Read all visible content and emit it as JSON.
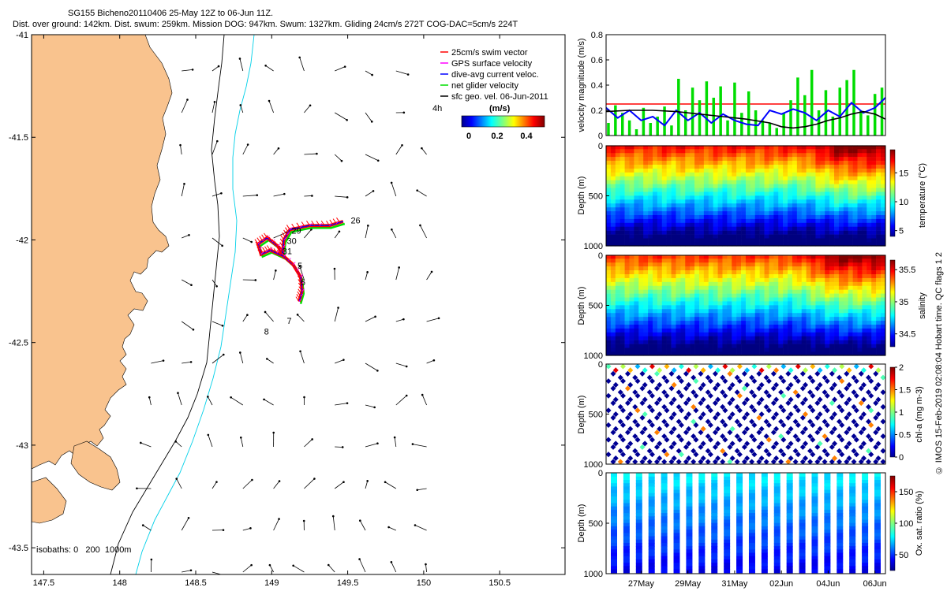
{
  "header": {
    "line1": "SG155 Bicheno20110406 25-May 12Z to 06-Jun 11Z.",
    "line2": "Dist. over ground: 142km. Dist. swum: 259km. Mission DOG: 947km. Swum: 1327km. Gliding 24cm/s 272T COG-DAC=5cm/s 224T"
  },
  "credit": "© IMOS 15-Feb-2019 02:08:04 Hobart time. QC flags 1 2",
  "colors": {
    "land": "#f9c38e",
    "isobath_200": "#000000",
    "isobath_1000": "#00d0e8",
    "swim_vector": "#ff0000",
    "gps_velocity": "#ff00ff",
    "dac_velocity": "#0000ff",
    "net_velocity": "#00dd00",
    "sfc_geo": "#000000"
  },
  "chart_data": [
    {
      "type": "map",
      "x_ticks": [
        "147.5",
        "148",
        "148.5",
        "149",
        "149.5",
        "150",
        "150.5"
      ],
      "x_tick_values": [
        147.5,
        148,
        148.5,
        149,
        149.5,
        150,
        150.5
      ],
      "y_ticks": [
        "-41",
        "-41.5",
        "-42",
        "-42.5",
        "-43",
        "-43.5"
      ],
      "y_tick_values": [
        -41,
        -41.5,
        -42,
        -42.5,
        -43,
        -43.5
      ],
      "xlim": [
        147.42,
        150.93
      ],
      "ylim": [
        -43.63,
        -41
      ],
      "legend": {
        "placement": "top-right",
        "entries": [
          {
            "label": "25cm/s swim vector",
            "color": "#ff0000"
          },
          {
            "label": "GPS surface velocity",
            "color": "#ff00ff"
          },
          {
            "label": "dive-avg current veloc.",
            "color": "#0000ff"
          },
          {
            "label": "net glider velocity",
            "color": "#00dd00"
          },
          {
            "label": "sfc geo. vel. 06-Jun-2011",
            "color": "#000000"
          }
        ]
      },
      "interval_label": "4h",
      "colorbar": {
        "title": "(m/s)",
        "ticks": [
          "0",
          "0.2",
          "0.4"
        ],
        "tick_values": [
          0,
          0.2,
          0.4
        ],
        "range": [
          0,
          0.5
        ]
      },
      "isobaths_label": "isobaths: 0   200  1000m",
      "dive_labels": [
        {
          "label": "26",
          "lon": 149.52,
          "lat": -41.92
        },
        {
          "label": "29",
          "lon": 149.13,
          "lat": -41.97
        },
        {
          "label": "30",
          "lon": 149.1,
          "lat": -42.02
        },
        {
          "label": "31",
          "lon": 149.07,
          "lat": -42.07
        },
        {
          "label": "5",
          "lon": 149.17,
          "lat": -42.14
        },
        {
          "label": "6",
          "lon": 149.19,
          "lat": -42.22
        },
        {
          "label": "7",
          "lon": 149.1,
          "lat": -42.41
        },
        {
          "label": "8",
          "lon": 148.95,
          "lat": -42.46
        }
      ],
      "track": [
        {
          "lon": 149.18,
          "lat": -42.3
        },
        {
          "lon": 149.2,
          "lat": -42.25
        },
        {
          "lon": 149.19,
          "lat": -42.18
        },
        {
          "lon": 149.14,
          "lat": -42.12
        },
        {
          "lon": 149.08,
          "lat": -42.08
        },
        {
          "lon": 148.99,
          "lat": -42.05
        },
        {
          "lon": 148.93,
          "lat": -42.07
        },
        {
          "lon": 148.91,
          "lat": -42.02
        },
        {
          "lon": 148.97,
          "lat": -41.99
        },
        {
          "lon": 149.04,
          "lat": -42.03
        },
        {
          "lon": 149.07,
          "lat": -42.07
        },
        {
          "lon": 149.08,
          "lat": -42.0
        },
        {
          "lon": 149.12,
          "lat": -41.95
        },
        {
          "lon": 149.25,
          "lat": -41.93
        },
        {
          "lon": 149.38,
          "lat": -41.93
        },
        {
          "lon": 149.47,
          "lat": -41.91
        }
      ]
    },
    {
      "type": "line",
      "ylabel": "velocity magnitude (m/s)",
      "ylim": [
        0,
        0.8
      ],
      "y_ticks": [
        "0",
        "0.2",
        "0.4",
        "0.6",
        "0.8"
      ],
      "y_tick_values": [
        0,
        0.2,
        0.4,
        0.6,
        0.8
      ],
      "x_day_range": [
        25.5,
        37.45
      ],
      "series": [
        {
          "color": "#ff0000",
          "x": [
            25.5,
            37.45
          ],
          "y": [
            0.25,
            0.25
          ]
        },
        {
          "color": "#00dd00",
          "x": [
            25.6,
            25.9,
            26.2,
            26.5,
            26.8,
            27.1,
            27.4,
            27.7,
            28.0,
            28.3,
            28.6,
            28.9,
            29.2,
            29.5,
            29.8,
            30.1,
            30.4,
            30.7,
            31.0,
            31.3,
            31.6,
            31.9,
            32.2,
            32.5,
            32.8,
            33.1,
            33.4,
            33.7,
            34.0,
            34.3,
            34.6,
            34.9,
            35.2,
            35.5,
            35.8,
            36.1,
            36.4,
            36.7,
            37.0,
            37.3
          ],
          "y": [
            0.1,
            0.24,
            0.18,
            0.12,
            0.05,
            0.22,
            0.1,
            0.15,
            0.23,
            0.08,
            0.45,
            0.2,
            0.38,
            0.28,
            0.43,
            0.3,
            0.39,
            0.12,
            0.42,
            0.18,
            0.35,
            0.2,
            0.12,
            0.1,
            0.06,
            0.18,
            0.28,
            0.46,
            0.32,
            0.52,
            0.2,
            0.36,
            0.15,
            0.38,
            0.44,
            0.52,
            0.2,
            0.16,
            0.33,
            0.38
          ]
        },
        {
          "color": "#0000ff",
          "x": [
            25.5,
            26.0,
            26.5,
            27.0,
            27.5,
            28.0,
            28.5,
            29.0,
            29.5,
            30.0,
            30.5,
            31.0,
            31.5,
            32.0,
            32.5,
            33.0,
            33.5,
            34.0,
            34.5,
            35.0,
            35.5,
            36.0,
            36.5,
            37.0,
            37.45
          ],
          "y": [
            0.22,
            0.14,
            0.2,
            0.12,
            0.15,
            0.08,
            0.2,
            0.12,
            0.18,
            0.1,
            0.17,
            0.12,
            0.09,
            0.08,
            0.2,
            0.17,
            0.21,
            0.18,
            0.12,
            0.2,
            0.15,
            0.26,
            0.18,
            0.22,
            0.3
          ]
        },
        {
          "color": "#000000",
          "x": [
            25.5,
            26.5,
            27.5,
            28.5,
            29.5,
            30.5,
            31.5,
            32.5,
            33.0,
            33.5,
            34.0,
            34.5,
            35.0,
            35.5,
            36.0,
            36.5,
            37.0,
            37.45
          ],
          "y": [
            0.19,
            0.2,
            0.2,
            0.19,
            0.17,
            0.15,
            0.13,
            0.1,
            0.07,
            0.06,
            0.07,
            0.09,
            0.12,
            0.14,
            0.17,
            0.19,
            0.17,
            0.13
          ]
        }
      ]
    },
    {
      "type": "heatmap",
      "ylabel": "Depth (m)",
      "ylim": [
        1000,
        0
      ],
      "y_ticks": [
        "0",
        "500",
        "1000"
      ],
      "y_tick_values": [
        0,
        500,
        1000
      ],
      "colorbar_label": "temperature (°C)",
      "colorbar_ticks": [
        "5",
        "10",
        "15"
      ],
      "colorbar_tick_values": [
        5,
        10,
        15
      ],
      "color_range": [
        4,
        19
      ]
    },
    {
      "type": "heatmap",
      "ylabel": "Depth (m)",
      "ylim": [
        1000,
        0
      ],
      "y_ticks": [
        "0",
        "500",
        "1000"
      ],
      "y_tick_values": [
        0,
        500,
        1000
      ],
      "colorbar_label": "salinity",
      "colorbar_ticks": [
        "34.5",
        "35",
        "35.5"
      ],
      "colorbar_tick_values": [
        34.5,
        35,
        35.5
      ],
      "color_range": [
        34.3,
        35.65
      ]
    },
    {
      "type": "heatmap",
      "ylabel": "Depth (m)",
      "ylim": [
        1000,
        0
      ],
      "y_ticks": [
        "0",
        "500",
        "1000"
      ],
      "y_tick_values": [
        0,
        500,
        1000
      ],
      "colorbar_label": "chl-a (mg m-3)",
      "colorbar_ticks": [
        "0",
        "0.5",
        "1",
        "1.5",
        "2"
      ],
      "colorbar_tick_values": [
        0,
        0.5,
        1,
        1.5,
        2
      ],
      "color_range": [
        0,
        2
      ]
    },
    {
      "type": "heatmap",
      "ylabel": "Depth (m)",
      "ylim": [
        1000,
        0
      ],
      "y_ticks": [
        "0",
        "500",
        "1000"
      ],
      "y_tick_values": [
        0,
        500,
        1000
      ],
      "colorbar_label": "Ox. sat. ratio (%)",
      "colorbar_ticks": [
        "50",
        "100",
        "150"
      ],
      "colorbar_tick_values": [
        50,
        100,
        150
      ],
      "color_range": [
        25,
        175
      ],
      "x_ticks": [
        "27May",
        "29May",
        "31May",
        "02Jun",
        "04Jun",
        "06Jun"
      ],
      "x_tick_values": [
        27,
        29,
        31,
        33,
        35,
        37
      ]
    }
  ]
}
